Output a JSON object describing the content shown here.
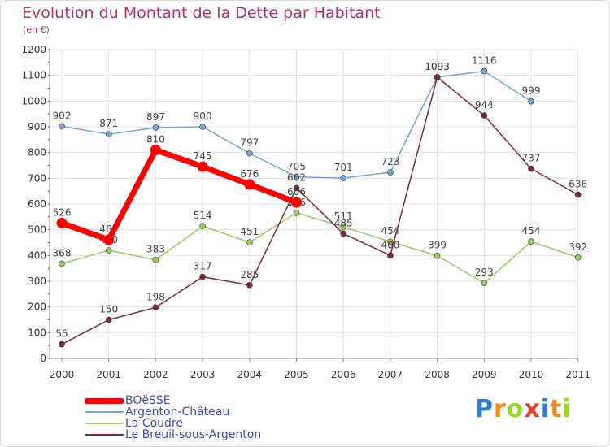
{
  "title": "Evolution du Montant de la Dette par Habitant",
  "subtitle": "(en €)",
  "logo_text": "Proxiti",
  "chart_data": {
    "type": "line",
    "title": "Evolution du Montant de la Dette par Habitant",
    "subtitle": "(en €)",
    "x": [
      "2000",
      "2001",
      "2002",
      "2003",
      "2004",
      "2005",
      "2006",
      "2007",
      "2008",
      "2009",
      "2010",
      "2011"
    ],
    "ylim": [
      0,
      1200
    ],
    "yticks": [
      "0",
      "100",
      "200",
      "300",
      "400",
      "500",
      "600",
      "700",
      "800",
      "900",
      "1000",
      "1100",
      "1200"
    ],
    "grid": true,
    "legend_position": "bottom-left",
    "series": [
      {
        "name": "BOëSSE",
        "color": "#ff0000",
        "emphasis": true,
        "values": [
          526,
          461,
          810,
          745,
          676,
          606,
          null,
          null,
          null,
          null,
          null,
          null
        ],
        "labels": [
          "526",
          "461",
          "810",
          "745",
          "676",
          "606",
          "",
          "",
          "",
          "",
          "",
          ""
        ]
      },
      {
        "name": "Argenton-Château",
        "color": "#74a5d5",
        "emphasis": false,
        "values": [
          902,
          871,
          897,
          900,
          797,
          705,
          701,
          723,
          1093,
          1116,
          999,
          null
        ],
        "labels": [
          "902",
          "871",
          "897",
          "900",
          "797",
          "705",
          "701",
          "723",
          "1093",
          "1116",
          "999",
          ""
        ]
      },
      {
        "name": "La Coudre",
        "color": "#99cc66",
        "emphasis": false,
        "values": [
          368,
          420,
          383,
          514,
          451,
          566,
          511,
          454,
          399,
          293,
          454,
          392
        ],
        "labels": [
          "368",
          "420",
          "383",
          "514",
          "451",
          "566",
          "511",
          "454",
          "399",
          "293",
          "454",
          "392"
        ]
      },
      {
        "name": "Le Breuil-sous-Argenton",
        "color": "#7a2a3a",
        "emphasis": false,
        "values": [
          55,
          150,
          198,
          317,
          285,
          662,
          485,
          400,
          1093,
          944,
          737,
          636
        ],
        "labels": [
          "55",
          "150",
          "198",
          "317",
          "285",
          "662",
          "485",
          "400",
          "1093",
          "944",
          "737",
          "636"
        ]
      }
    ]
  }
}
